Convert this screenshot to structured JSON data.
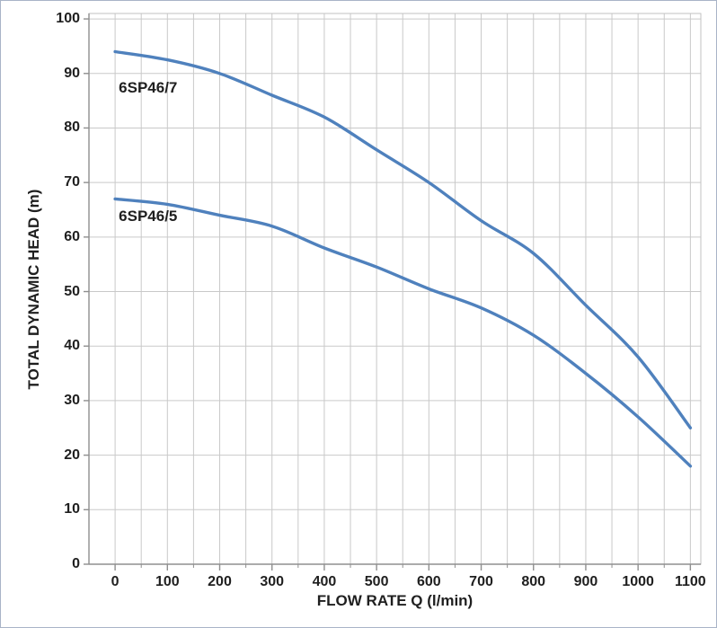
{
  "chart_data": {
    "type": "line",
    "title": "",
    "xlabel": "FLOW RATE Q (l/min)",
    "ylabel": "TOTAL DYNAMIC HEAD (m)",
    "x": [
      0,
      100,
      200,
      300,
      400,
      500,
      600,
      700,
      800,
      900,
      1000,
      1100
    ],
    "series": [
      {
        "name": "6SP46/7",
        "values": [
          94,
          92.5,
          90,
          86,
          82,
          76,
          70,
          63,
          57,
          47.5,
          38,
          25
        ],
        "color": "#4f81bd"
      },
      {
        "name": "6SP46/5",
        "values": [
          67,
          66,
          64,
          62,
          58,
          54.5,
          50.5,
          47,
          42,
          35,
          27,
          18
        ],
        "color": "#4f81bd"
      }
    ],
    "annotations": [
      {
        "text": "6SP46/7",
        "x": 7,
        "y": 87.4
      },
      {
        "text": "6SP46/5",
        "x": 7,
        "y": 63.7
      }
    ],
    "x_ticks": [
      0,
      100,
      200,
      300,
      400,
      500,
      600,
      700,
      800,
      900,
      1000,
      1100
    ],
    "y_ticks": [
      0,
      10,
      20,
      30,
      40,
      50,
      60,
      70,
      80,
      90,
      100
    ],
    "x_minor_step": 50,
    "xlim": [
      -50,
      1120
    ],
    "ylim": [
      0,
      101
    ],
    "grid": true,
    "legend": "inline-labels-on-curves"
  },
  "colors": {
    "curve": "#4f81bd",
    "gridline": "#c9c9c9",
    "plot_border": "#c2c2c2",
    "axis": "#8f8f8f",
    "text": "#1f1f1f",
    "outer_border": "#a9b4c7",
    "background": "#ffffff"
  }
}
